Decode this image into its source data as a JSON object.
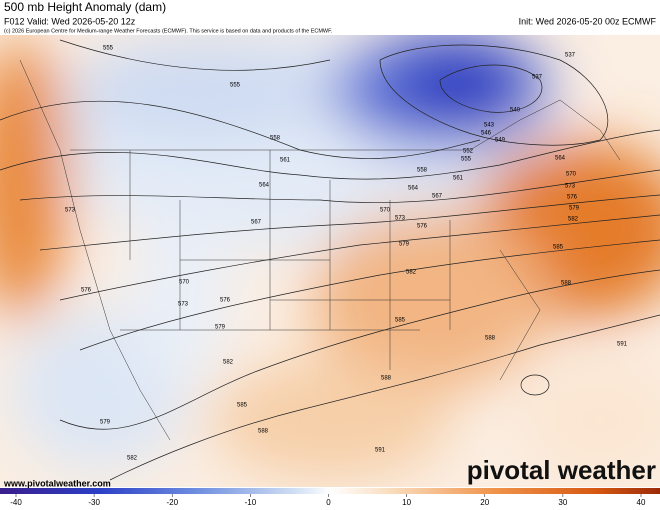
{
  "header": {
    "title": "500 mb Height Anomaly (dam)",
    "valid": "F012 Valid: Wed 2026-05-20 12z",
    "init": "Init: Wed 2026-05-20 00z ECMWF",
    "credit": "(c) 2026 European Centre for Medium-range Weather Forecasts (ECMWF). This service is based on data and products of the ECMWF."
  },
  "map": {
    "contour_labels": [
      555,
      555,
      558,
      561,
      564,
      567,
      570,
      573,
      576,
      579,
      582,
      585,
      588,
      588,
      585,
      588,
      591,
      591,
      573,
      576,
      570,
      573,
      576,
      579,
      582,
      579,
      582,
      537,
      537,
      540,
      543,
      546,
      549,
      552,
      555,
      558,
      561,
      564,
      567,
      564,
      570,
      573,
      576,
      579,
      582,
      585,
      588
    ]
  },
  "colorbar": {
    "ticks": [
      -40,
      -30,
      -20,
      -10,
      0,
      10,
      20,
      30,
      40
    ],
    "lim": [
      -40,
      40
    ]
  },
  "footer": {
    "website": "www.pivotalweather.com",
    "logo": "pivotal weather"
  }
}
